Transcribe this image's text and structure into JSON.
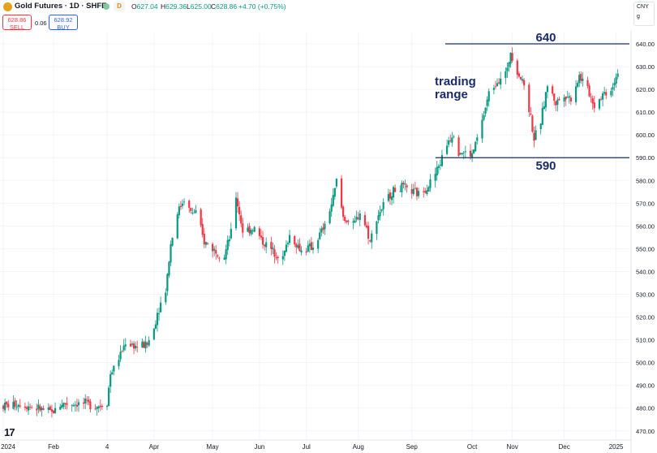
{
  "header": {
    "symbol": "Gold Futures · 1D · SHFE",
    "badge": "D",
    "open_label": "O",
    "open": "627.04",
    "high_label": "H",
    "high": "629.36",
    "low_label": "L",
    "low": "625.00",
    "close_label": "C",
    "close": "628.86",
    "change": "+4.70 (+0.75%)"
  },
  "trade": {
    "sell_price": "628.86",
    "sell_label": "SELL",
    "spread": "0.06",
    "buy_price": "628.92",
    "buy_label": "BUY"
  },
  "currency": {
    "code": "CNY",
    "unit": "g"
  },
  "colors": {
    "up": "#089981",
    "down": "#f23645",
    "annotation": "#1a2a6c",
    "grid": "#f0f3fa"
  },
  "chart_data": {
    "type": "candlestick",
    "title": "",
    "xlabel": "",
    "ylabel": "",
    "ylim": [
      466,
      645
    ],
    "yticks": [
      470,
      480,
      490,
      500,
      510,
      520,
      530,
      540,
      550,
      560,
      570,
      580,
      590,
      600,
      610,
      620,
      630,
      640
    ],
    "ytick_labels": [
      "470.00",
      "480.00",
      "490.00",
      "500.00",
      "510.00",
      "520.00",
      "530.00",
      "540.00",
      "550.00",
      "560.00",
      "570.00",
      "580.00",
      "590.00",
      "600.00",
      "610.00",
      "620.00",
      "630.00",
      "640.00"
    ],
    "grid": true,
    "xtick_labels": [
      "2024",
      "Feb",
      "4",
      "Apr",
      "May",
      "Jun",
      "Jul",
      "Aug",
      "Sep",
      "Oct",
      "Nov",
      "Dec",
      "2025"
    ],
    "xtick_dates": [
      "2024-01-02",
      "2024-02-01",
      "2024-03-04",
      "2024-04-01",
      "2024-05-06",
      "2024-06-03",
      "2024-07-01",
      "2024-08-01",
      "2024-09-02",
      "2024-10-08",
      "2024-11-01",
      "2024-12-02",
      "2025-01-02"
    ],
    "series_path": [
      [
        "2024-01-02",
        481
      ],
      [
        "2024-01-12",
        482
      ],
      [
        "2024-01-22",
        480
      ],
      [
        "2024-01-31",
        478
      ],
      [
        "2024-02-06",
        482
      ],
      [
        "2024-02-19",
        482
      ],
      [
        "2024-02-29",
        481
      ],
      [
        "2024-03-04",
        483
      ],
      [
        "2024-03-06",
        495
      ],
      [
        "2024-03-11",
        502
      ],
      [
        "2024-03-15",
        509
      ],
      [
        "2024-03-22",
        507
      ],
      [
        "2024-03-28",
        508
      ],
      [
        "2024-04-01",
        515
      ],
      [
        "2024-04-03",
        522
      ],
      [
        "2024-04-08",
        532
      ],
      [
        "2024-04-11",
        552
      ],
      [
        "2024-04-15",
        566
      ],
      [
        "2024-04-19",
        572
      ],
      [
        "2024-04-23",
        566
      ],
      [
        "2024-04-26",
        566
      ],
      [
        "2024-05-01",
        553
      ],
      [
        "2024-05-08",
        549
      ],
      [
        "2024-05-13",
        547
      ],
      [
        "2024-05-17",
        557
      ],
      [
        "2024-05-20",
        573
      ],
      [
        "2024-05-24",
        558
      ],
      [
        "2024-05-31",
        559
      ],
      [
        "2024-06-05",
        553
      ],
      [
        "2024-06-11",
        549
      ],
      [
        "2024-06-17",
        546
      ],
      [
        "2024-06-21",
        556
      ],
      [
        "2024-06-28",
        549
      ],
      [
        "2024-07-05",
        551
      ],
      [
        "2024-07-12",
        560
      ],
      [
        "2024-07-17",
        572
      ],
      [
        "2024-07-19",
        580
      ],
      [
        "2024-07-23",
        564
      ],
      [
        "2024-07-29",
        560
      ],
      [
        "2024-08-02",
        566
      ],
      [
        "2024-08-06",
        559
      ],
      [
        "2024-08-08",
        553
      ],
      [
        "2024-08-12",
        564
      ],
      [
        "2024-08-16",
        569
      ],
      [
        "2024-08-21",
        575
      ],
      [
        "2024-08-27",
        577
      ],
      [
        "2024-09-02",
        575
      ],
      [
        "2024-09-06",
        574
      ],
      [
        "2024-09-12",
        578
      ],
      [
        "2024-09-16",
        583
      ],
      [
        "2024-09-19",
        588
      ],
      [
        "2024-09-24",
        598
      ],
      [
        "2024-09-27",
        601
      ],
      [
        "2024-09-30",
        593
      ],
      [
        "2024-10-08",
        591
      ],
      [
        "2024-10-14",
        606
      ],
      [
        "2024-10-18",
        618
      ],
      [
        "2024-10-23",
        624
      ],
      [
        "2024-10-29",
        628
      ],
      [
        "2024-10-31",
        637
      ],
      [
        "2024-11-04",
        628
      ],
      [
        "2024-11-08",
        622
      ],
      [
        "2024-11-12",
        608
      ],
      [
        "2024-11-14",
        598
      ],
      [
        "2024-11-18",
        606
      ],
      [
        "2024-11-22",
        622
      ],
      [
        "2024-11-27",
        614
      ],
      [
        "2024-12-02",
        618
      ],
      [
        "2024-12-06",
        616
      ],
      [
        "2024-12-11",
        626
      ],
      [
        "2024-12-16",
        620
      ],
      [
        "2024-12-20",
        613
      ],
      [
        "2024-12-25",
        618
      ],
      [
        "2024-12-30",
        620
      ],
      [
        "2025-01-03",
        628
      ]
    ],
    "annotations": [
      {
        "type": "hline",
        "y": 640,
        "label": "640"
      },
      {
        "type": "hline",
        "y": 590,
        "label": "590"
      },
      {
        "type": "text",
        "label_lines": [
          "trading",
          "range"
        ]
      }
    ]
  }
}
